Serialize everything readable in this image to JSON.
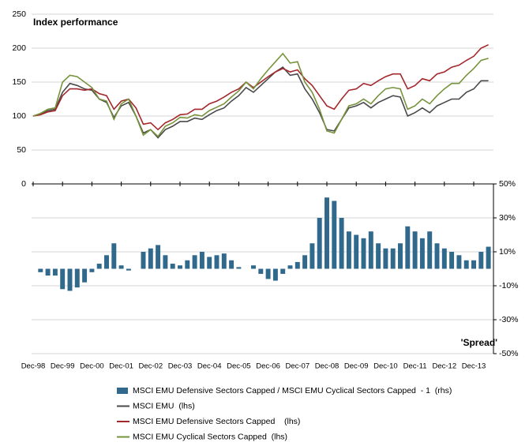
{
  "chart_data": {
    "type": "combo",
    "title": "Index performance",
    "y2_title": "'Spread'",
    "categories": [
      "Dec-98",
      null,
      null,
      null,
      "Dec-99",
      null,
      null,
      null,
      "Dec-00",
      null,
      null,
      null,
      "Dec-01",
      null,
      null,
      null,
      "Dec-02",
      null,
      null,
      null,
      "Dec-03",
      null,
      null,
      null,
      "Dec-04",
      null,
      null,
      null,
      "Dec-05",
      null,
      null,
      null,
      "Dec-06",
      null,
      null,
      null,
      "Dec-07",
      null,
      null,
      null,
      "Dec-08",
      null,
      null,
      null,
      "Dec-09",
      null,
      null,
      null,
      "Dec-10",
      null,
      null,
      null,
      "Dec-11",
      null,
      null,
      null,
      "Dec-12",
      null,
      null,
      null,
      "Dec-13",
      null,
      null
    ],
    "ylim": [
      0,
      250
    ],
    "yticks": [
      0,
      50,
      100,
      150,
      200,
      250
    ],
    "y2lim": [
      -50,
      50
    ],
    "y2ticks": [
      {
        "value": 50,
        "label": "50%"
      },
      {
        "value": 30,
        "label": "30%"
      },
      {
        "value": 10,
        "label": "10%"
      },
      {
        "value": -10,
        "label": "-10%"
      },
      {
        "value": -30,
        "label": "-30%"
      },
      {
        "value": -50,
        "label": "-50%"
      }
    ],
    "grid": true,
    "series": [
      {
        "name": "MSCI EMU Defensive Sectors Capped / MSCI EMU Cyclical Sectors Capped  - 1  (rhs)",
        "type": "bar",
        "axis": "y2",
        "color": "#30698c",
        "values": [
          0,
          -2,
          -4,
          -4,
          -12,
          -13,
          -11,
          -8,
          -2,
          3,
          8,
          15,
          2,
          -1,
          0,
          10,
          12,
          14,
          8,
          3,
          2,
          5,
          8,
          10,
          7,
          8,
          9,
          5,
          1,
          0,
          2,
          -3,
          -6,
          -7,
          -3,
          2,
          4,
          8,
          15,
          30,
          42,
          40,
          30,
          22,
          20,
          18,
          22,
          15,
          12,
          12,
          15,
          25,
          22,
          18,
          22,
          15,
          12,
          10,
          8,
          5,
          5,
          10,
          13
        ]
      },
      {
        "name": "MSCI EMU  (lhs)",
        "type": "line",
        "color": "#4a4a4a",
        "values": [
          100,
          103,
          108,
          110,
          135,
          148,
          145,
          140,
          138,
          125,
          120,
          98,
          115,
          120,
          100,
          75,
          80,
          68,
          80,
          85,
          92,
          92,
          97,
          95,
          102,
          108,
          112,
          122,
          130,
          142,
          135,
          145,
          155,
          165,
          172,
          160,
          162,
          140,
          125,
          105,
          80,
          78,
          95,
          112,
          115,
          120,
          112,
          120,
          125,
          130,
          128,
          100,
          105,
          112,
          105,
          115,
          120,
          125,
          125,
          135,
          140,
          152,
          152
        ]
      },
      {
        "name": "MSCI EMU Defensive Sectors Capped    (lhs)",
        "type": "line",
        "color": "#a3282c",
        "values": [
          100,
          102,
          106,
          108,
          130,
          140,
          140,
          138,
          140,
          133,
          130,
          110,
          122,
          125,
          112,
          88,
          90,
          80,
          90,
          95,
          102,
          103,
          110,
          110,
          118,
          122,
          128,
          135,
          140,
          150,
          142,
          150,
          158,
          165,
          170,
          165,
          168,
          155,
          145,
          130,
          115,
          110,
          125,
          138,
          140,
          148,
          145,
          152,
          158,
          162,
          162,
          140,
          145,
          155,
          152,
          162,
          165,
          172,
          175,
          182,
          188,
          200,
          205
        ]
      },
      {
        "name": "MSCI EMU Cyclical Sectors Capped  (lhs)",
        "type": "line",
        "color": "#77933c",
        "values": [
          100,
          104,
          110,
          112,
          150,
          160,
          158,
          150,
          142,
          125,
          122,
          95,
          118,
          125,
          100,
          72,
          80,
          70,
          85,
          90,
          98,
          97,
          102,
          100,
          108,
          113,
          118,
          128,
          137,
          150,
          140,
          155,
          168,
          180,
          192,
          178,
          180,
          150,
          135,
          110,
          78,
          75,
          95,
          115,
          118,
          125,
          118,
          130,
          140,
          142,
          140,
          110,
          115,
          125,
          118,
          130,
          140,
          148,
          148,
          160,
          170,
          182,
          185
        ]
      }
    ]
  }
}
